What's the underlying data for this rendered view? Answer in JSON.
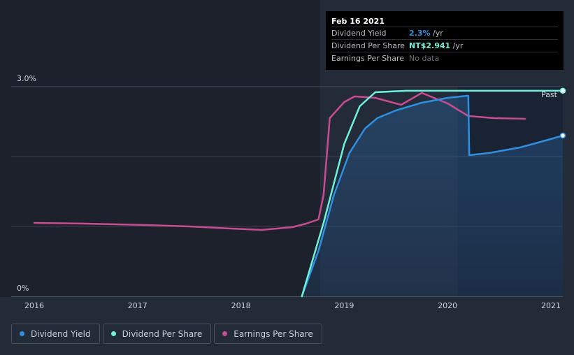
{
  "tooltip": {
    "date": "Feb 16 2021",
    "rows": [
      {
        "label": "Dividend Yield",
        "value": "2.3%",
        "unit": " /yr",
        "color": "#2f8fe0"
      },
      {
        "label": "Dividend Per Share",
        "value": "NT$2.941",
        "unit": " /yr",
        "color": "#6ff2dc"
      },
      {
        "label": "Earnings Per Share",
        "value": "No data",
        "unit": "",
        "color": "#6c7079"
      }
    ]
  },
  "past_label": "Past",
  "legend": [
    {
      "label": "Dividend Yield",
      "color": "#2f8fe0"
    },
    {
      "label": "Dividend Per Share",
      "color": "#6ff2dc"
    },
    {
      "label": "Earnings Per Share",
      "color": "#c84c91"
    }
  ],
  "chart_data": {
    "type": "line",
    "title": "",
    "xlabel": "",
    "ylabel": "",
    "y_tick_labels": [
      "3.0%",
      "0%"
    ],
    "x_tick_labels": [
      "2016",
      "2017",
      "2018",
      "2019",
      "2020",
      "2021"
    ],
    "xlim": [
      2015.77,
      2021.12
    ],
    "ylim": [
      0,
      3.0
    ],
    "grid": true,
    "legend_position": "bottom-left",
    "series": [
      {
        "name": "Dividend Yield",
        "color": "#2f8fe0",
        "points": [
          [
            2018.59,
            -0.3
          ],
          [
            2018.75,
            0.65
          ],
          [
            2018.9,
            1.45
          ],
          [
            2019.05,
            2.05
          ],
          [
            2019.2,
            2.4
          ],
          [
            2019.32,
            2.55
          ],
          [
            2019.5,
            2.66
          ],
          [
            2019.75,
            2.77
          ],
          [
            2020.0,
            2.84
          ],
          [
            2020.19,
            2.87
          ],
          [
            2020.2,
            2.87
          ],
          [
            2020.21,
            2.02
          ],
          [
            2020.4,
            2.05
          ],
          [
            2020.7,
            2.13
          ],
          [
            2020.95,
            2.23
          ],
          [
            2021.12,
            2.3
          ]
        ]
      },
      {
        "name": "Dividend Per Share",
        "color": "#6ff2dc",
        "points": [
          [
            2018.59,
            -0.3
          ],
          [
            2018.8,
            1.05
          ],
          [
            2019.0,
            2.18
          ],
          [
            2019.15,
            2.72
          ],
          [
            2019.3,
            2.92
          ],
          [
            2019.6,
            2.941
          ],
          [
            2020.5,
            2.941
          ],
          [
            2021.12,
            2.941
          ]
        ]
      },
      {
        "name": "Earnings Per Share",
        "color": "#c84c91",
        "points": [
          [
            2016.0,
            1.05
          ],
          [
            2016.5,
            1.04
          ],
          [
            2017.08,
            1.02
          ],
          [
            2017.5,
            1.0
          ],
          [
            2017.9,
            0.97
          ],
          [
            2018.2,
            0.95
          ],
          [
            2018.5,
            0.99
          ],
          [
            2018.63,
            1.04
          ],
          [
            2018.75,
            1.1
          ],
          [
            2018.8,
            1.45
          ],
          [
            2018.86,
            2.55
          ],
          [
            2019.0,
            2.78
          ],
          [
            2019.1,
            2.86
          ],
          [
            2019.3,
            2.84
          ],
          [
            2019.55,
            2.74
          ],
          [
            2019.75,
            2.91
          ],
          [
            2020.0,
            2.76
          ],
          [
            2020.2,
            2.58
          ],
          [
            2020.45,
            2.55
          ],
          [
            2020.75,
            2.54
          ]
        ]
      }
    ]
  }
}
